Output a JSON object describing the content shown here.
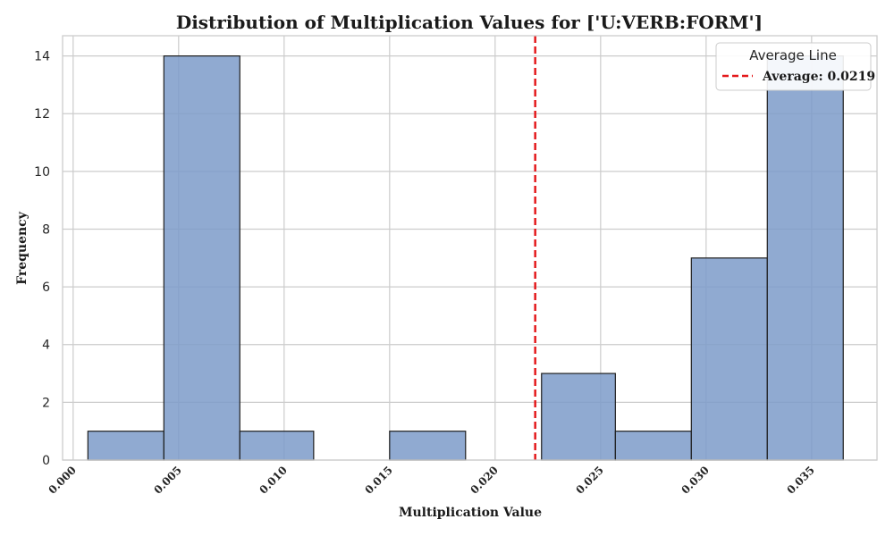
{
  "chart_data": {
    "type": "bar",
    "title": "Distribution of Multiplication Values for ['U:VERB:FORM']",
    "xlabel": "Multiplication Value",
    "ylabel": "Frequency",
    "xlim": [
      -0.0005,
      0.0381
    ],
    "ylim": [
      0,
      14.7
    ],
    "xticks": [
      "0.000",
      "0.005",
      "0.010",
      "0.015",
      "0.020",
      "0.025",
      "0.030",
      "0.035"
    ],
    "xtick_values": [
      0.0,
      0.005,
      0.01,
      0.015,
      0.02,
      0.025,
      0.03,
      0.035
    ],
    "yticks": [
      "0",
      "2",
      "4",
      "6",
      "8",
      "10",
      "12",
      "14"
    ],
    "ytick_values": [
      0,
      2,
      4,
      6,
      8,
      10,
      12,
      14
    ],
    "bins": [
      {
        "start": 0.0007,
        "end": 0.0043,
        "count": 1
      },
      {
        "start": 0.0043,
        "end": 0.0079,
        "count": 14
      },
      {
        "start": 0.0079,
        "end": 0.0114,
        "count": 1
      },
      {
        "start": 0.0114,
        "end": 0.015,
        "count": 0
      },
      {
        "start": 0.015,
        "end": 0.0186,
        "count": 1
      },
      {
        "start": 0.0186,
        "end": 0.0222,
        "count": 0
      },
      {
        "start": 0.0222,
        "end": 0.0257,
        "count": 3
      },
      {
        "start": 0.0257,
        "end": 0.0293,
        "count": 1
      },
      {
        "start": 0.0293,
        "end": 0.0329,
        "count": 7
      },
      {
        "start": 0.0329,
        "end": 0.0365,
        "count": 14
      }
    ],
    "average": {
      "value": 0.0219,
      "label": "Average: 0.0219",
      "color": "#e41a1c",
      "style": "dashed"
    },
    "legend": {
      "title": "Average Line",
      "placement": "top-right"
    },
    "bar_color": "#7c9bc9",
    "bar_edge_color": "#1f1f1f",
    "grid": true
  }
}
